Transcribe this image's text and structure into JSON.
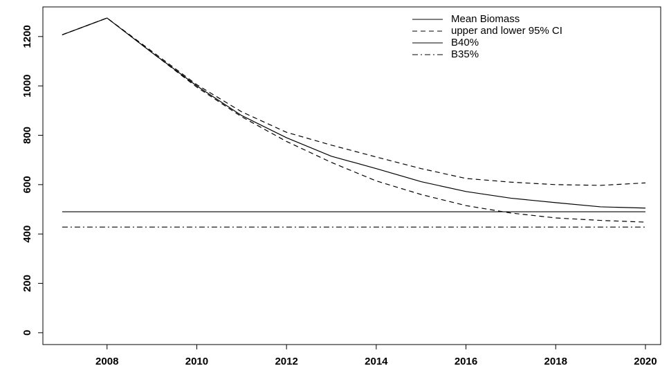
{
  "chart_data": {
    "type": "line",
    "x": [
      2007,
      2008,
      2009,
      2010,
      2011,
      2012,
      2013,
      2014,
      2015,
      2016,
      2017,
      2018,
      2019,
      2020
    ],
    "series": [
      {
        "name": "Mean Biomass",
        "color": "#000000",
        "linestyle": "solid",
        "values": [
          1207,
          1275,
          1135,
          1000,
          880,
          790,
          715,
          665,
          612,
          572,
          545,
          527,
          510,
          505
        ]
      },
      {
        "name": "upper and lower 95% CI",
        "color": "#000000",
        "linestyle": "dashed",
        "values": [
          1207,
          1275,
          1140,
          1005,
          895,
          812,
          760,
          712,
          665,
          625,
          610,
          600,
          597,
          607
        ]
      },
      {
        "color": "#000000",
        "linestyle": "dashed",
        "values": [
          1207,
          1275,
          1135,
          995,
          875,
          775,
          690,
          615,
          560,
          515,
          485,
          465,
          455,
          448
        ]
      },
      {
        "name": "B40%",
        "color": "#000000",
        "linestyle": "solid",
        "values": [
          490,
          490,
          490,
          490,
          490,
          490,
          490,
          490,
          490,
          490,
          490,
          490,
          490,
          490
        ]
      },
      {
        "name": "B35%",
        "color": "#000000",
        "linestyle": "dotdash",
        "values": [
          428,
          428,
          428,
          428,
          428,
          428,
          428,
          428,
          428,
          428,
          428,
          428,
          428,
          428
        ]
      }
    ],
    "xlim": [
      2006.57,
      2020.34
    ],
    "xticks": [
      2008,
      2010,
      2012,
      2014,
      2016,
      2018,
      2020
    ],
    "ylim": [
      -48,
      1320
    ],
    "yticks": [
      0,
      200,
      400,
      600,
      800,
      1000,
      1200
    ],
    "legend": "top-right"
  }
}
